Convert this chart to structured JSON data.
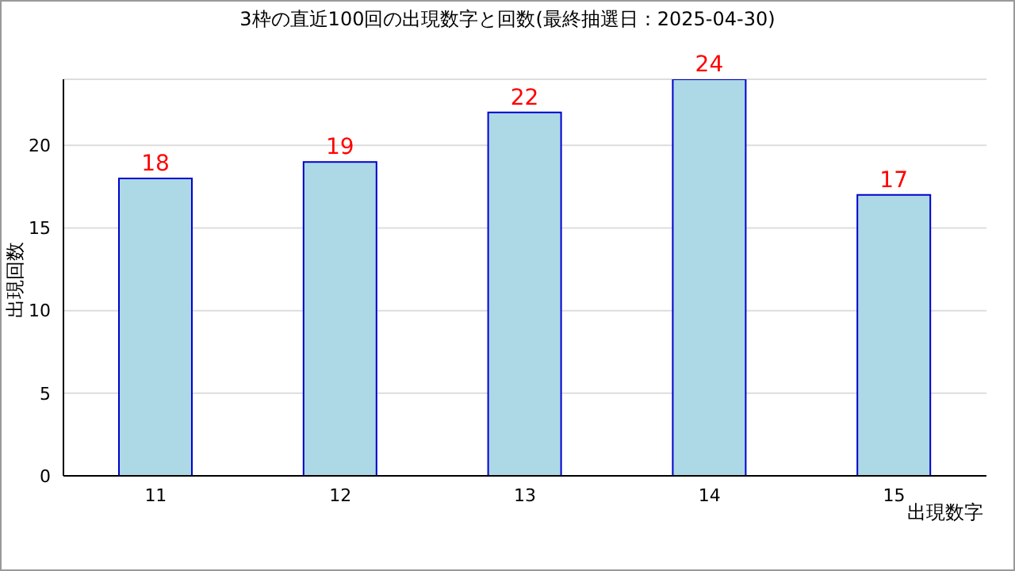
{
  "chart_data": {
    "type": "bar",
    "title": "3枠の直近100回の出現数字と回数(最終抽選日：2025-04-30)",
    "xlabel": "出現数字",
    "ylabel": "出現回数",
    "categories": [
      "11",
      "12",
      "13",
      "14",
      "15"
    ],
    "series": [
      {
        "color": "#add8e6",
        "values": [
          18,
          19,
          22,
          24,
          17
        ]
      }
    ],
    "ylim": [
      0,
      24
    ],
    "yticks": [
      0,
      5,
      10,
      15,
      20
    ],
    "grid": "y",
    "data_labels": true,
    "legend": false
  }
}
